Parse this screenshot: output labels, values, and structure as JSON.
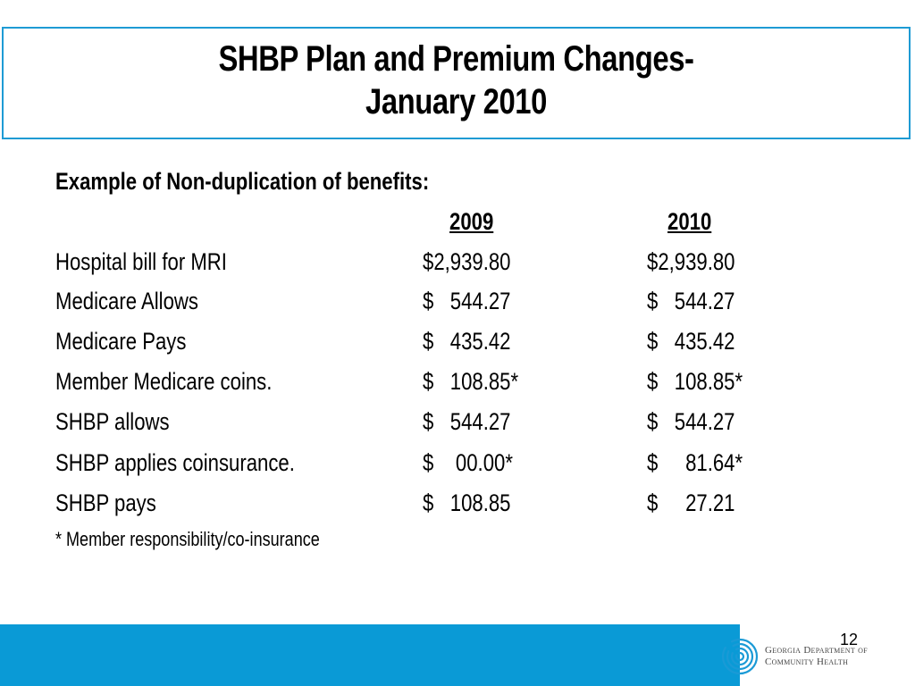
{
  "slide": {
    "title_line1": "SHBP Plan and Premium Changes-",
    "title_line2": "January 2010",
    "subtitle": "Example of Non-duplication of benefits:",
    "columns": [
      "2009",
      "2010"
    ],
    "rows": [
      {
        "label": "Hospital bill for MRI",
        "v2009": "$2,939.80",
        "v2010": "$2,939.80"
      },
      {
        "label": "Medicare Allows",
        "v2009": "$   544.27",
        "v2010": "$   544.27"
      },
      {
        "label": "Medicare Pays",
        "v2009": "$   435.42",
        "v2010": "$   435.42"
      },
      {
        "label": "Member Medicare coins.",
        "v2009": "$   108.85*",
        "v2010": "$   108.85*"
      },
      {
        "label": "SHBP allows",
        "v2009": "$   544.27",
        "v2010": "$   544.27"
      },
      {
        "label": "SHBP applies coinsurance.",
        "v2009": "$    00.00*",
        "v2010": "$     81.64*"
      },
      {
        "label": "SHBP pays",
        "v2009": "$   108.85",
        "v2010": "$     27.21"
      }
    ],
    "footnote": "* Member responsibility/co-insurance",
    "page_number": "12"
  },
  "footer": {
    "logo_line1": "Georgia Department of",
    "logo_line2": "Community Health",
    "logo_icon": "dch-swirl-logo-icon",
    "bar_color": "#0a9ad6"
  },
  "colors": {
    "title_border": "#1e9bd4",
    "footer_bar": "#0a9ad6"
  }
}
